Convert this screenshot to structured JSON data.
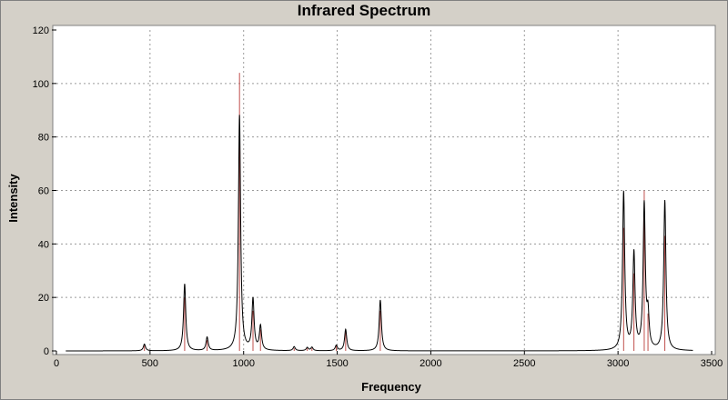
{
  "chart_data": {
    "type": "line",
    "title": "Infrared Spectrum",
    "xlabel": "Frequency",
    "ylabel": "Intensity",
    "xlim": [
      0,
      3500
    ],
    "ylim": [
      0,
      120
    ],
    "x_ticks": [
      0,
      500,
      1000,
      1500,
      2000,
      2500,
      3000,
      3500
    ],
    "y_ticks": [
      0,
      20,
      40,
      60,
      80,
      100,
      120
    ],
    "grid": true,
    "legend": "none",
    "colors": {
      "spectrum": "#000000",
      "sticks": "#c0504d",
      "grid": "#9a9a9a",
      "plot_bg": "#ffffff"
    },
    "spectrum_range": [
      50,
      3400
    ],
    "peak_width": 7,
    "peaks": [
      {
        "x": 470,
        "stick": 2,
        "height": 2.5
      },
      {
        "x": 685,
        "stick": 20,
        "height": 25
      },
      {
        "x": 805,
        "stick": 4,
        "height": 5
      },
      {
        "x": 978,
        "stick": 104,
        "height": 88
      },
      {
        "x": 1050,
        "stick": 15,
        "height": 19
      },
      {
        "x": 1090,
        "stick": 8,
        "height": 9
      },
      {
        "x": 1270,
        "stick": 1,
        "height": 1.5
      },
      {
        "x": 1340,
        "stick": 1,
        "height": 1.2
      },
      {
        "x": 1365,
        "stick": 1,
        "height": 1.3
      },
      {
        "x": 1495,
        "stick": 2,
        "height": 2
      },
      {
        "x": 1545,
        "stick": 7,
        "height": 8
      },
      {
        "x": 1730,
        "stick": 15,
        "height": 19
      },
      {
        "x": 3030,
        "stick": 46,
        "height": 59
      },
      {
        "x": 3085,
        "stick": 29,
        "height": 36
      },
      {
        "x": 3140,
        "stick": 60,
        "height": 54
      },
      {
        "x": 3160,
        "stick": 14,
        "height": 12
      },
      {
        "x": 3250,
        "stick": 43,
        "height": 56
      }
    ]
  }
}
